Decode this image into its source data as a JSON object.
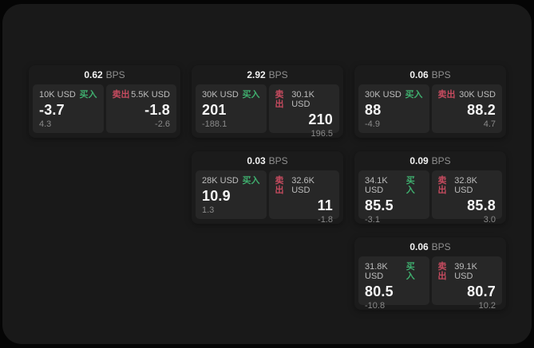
{
  "colors": {
    "buy_green": "#3fae6e",
    "sell_red": "#c64b5f",
    "surface": "#191919",
    "card": "#1b1b1b",
    "panel": "#272727"
  },
  "cards": [
    {
      "row": 1,
      "col": 1,
      "bps_value": "0.62",
      "bps_unit": "BPS",
      "buy": {
        "amount": "10K USD",
        "side_label": "买入",
        "value": "-3.7",
        "sub_value": "4.3"
      },
      "sell": {
        "amount": "5.5K USD",
        "side_label": "卖出",
        "value": "-1.8",
        "sub_value": "-2.6"
      }
    },
    {
      "row": 1,
      "col": 2,
      "bps_value": "2.92",
      "bps_unit": "BPS",
      "buy": {
        "amount": "30K USD",
        "side_label": "买入",
        "value": "201",
        "sub_value": "-188.1"
      },
      "sell": {
        "amount": "30.1K USD",
        "side_label": "卖出",
        "value": "210",
        "sub_value": "196.5"
      }
    },
    {
      "row": 1,
      "col": 3,
      "bps_value": "0.06",
      "bps_unit": "BPS",
      "buy": {
        "amount": "30K USD",
        "side_label": "买入",
        "value": "88",
        "sub_value": "-4.9"
      },
      "sell": {
        "amount": "30K USD",
        "side_label": "卖出",
        "value": "88.2",
        "sub_value": "4.7"
      }
    },
    {
      "row": 2,
      "col": 2,
      "bps_value": "0.03",
      "bps_unit": "BPS",
      "buy": {
        "amount": "28K USD",
        "side_label": "买入",
        "value": "10.9",
        "sub_value": "1.3"
      },
      "sell": {
        "amount": "32.6K USD",
        "side_label": "卖出",
        "value": "11",
        "sub_value": "-1.8"
      }
    },
    {
      "row": 2,
      "col": 3,
      "bps_value": "0.09",
      "bps_unit": "BPS",
      "buy": {
        "amount": "34.1K USD",
        "side_label": "买入",
        "value": "85.5",
        "sub_value": "-3.1"
      },
      "sell": {
        "amount": "32.8K USD",
        "side_label": "卖出",
        "value": "85.8",
        "sub_value": "3.0"
      }
    },
    {
      "row": 3,
      "col": 3,
      "bps_value": "0.06",
      "bps_unit": "BPS",
      "buy": {
        "amount": "31.8K USD",
        "side_label": "买入",
        "value": "80.5",
        "sub_value": "-10.8"
      },
      "sell": {
        "amount": "39.1K USD",
        "side_label": "卖出",
        "value": "80.7",
        "sub_value": "10.2"
      }
    }
  ]
}
